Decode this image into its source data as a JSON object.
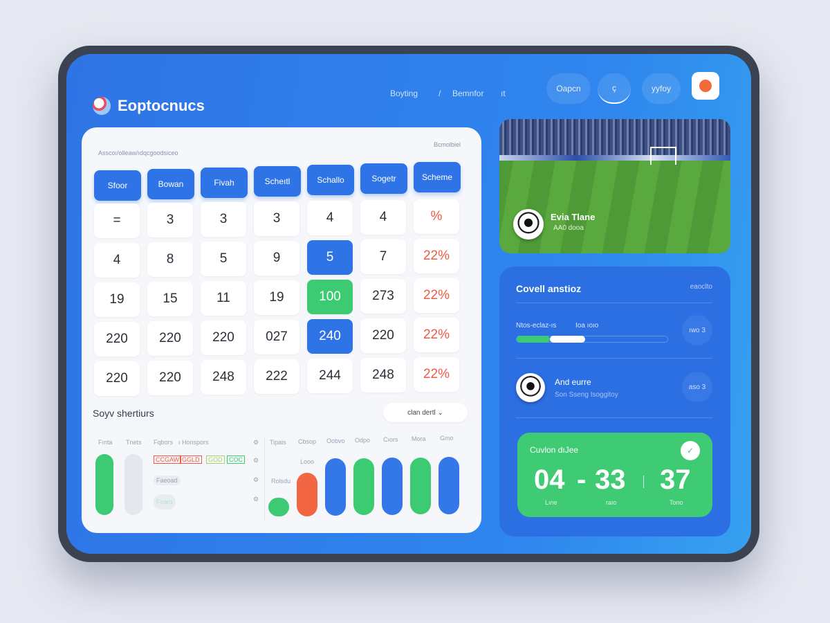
{
  "app": {
    "logo_text": "Eoptocnucs"
  },
  "nav": {
    "items": [
      "Boyting",
      "/",
      "Bemnfor",
      "ıt"
    ]
  },
  "header": {
    "search_label": "Oapcn",
    "icon_button": "ç",
    "profile_label": "yyfoy"
  },
  "card": {
    "caption_left": "Asscoı/olleaw/ıdqcgoodsiceo",
    "caption_right": "Bcmolbiel",
    "tabs": [
      "Sfoor",
      "Bowan",
      "Fivah",
      "Scheıtl",
      "Schallo",
      "Sogetr",
      "Scheme"
    ],
    "grid": [
      [
        "=",
        "3",
        "3",
        "3",
        "4",
        "4",
        "%"
      ],
      [
        "4",
        "8",
        "5",
        "9",
        "5",
        "7",
        "22%"
      ],
      [
        "19",
        "15",
        "11",
        "19",
        "100",
        "273",
        "22%"
      ],
      [
        "220",
        "220",
        "220",
        "027",
        "240",
        "220",
        "22%"
      ],
      [
        "220",
        "220",
        "248",
        "222",
        "244",
        "248",
        "22%"
      ]
    ],
    "highlights": {
      "1-4": "blue",
      "2-4": "green",
      "3-4": "blue"
    }
  },
  "shortcuts": {
    "title": "Soyv shertiurs",
    "dropdown": "clan dertl",
    "left_labels": [
      "Fınta",
      "Tnets",
      "Fqbors",
      "ı Honspors"
    ],
    "chips": [
      "CCGAW",
      "GGLD",
      "GOD",
      "COC"
    ],
    "chip2": "Faeoad",
    "chip3": "Foaro",
    "right_labels": [
      "Tipais",
      "Cbsop",
      "Oobvo",
      "Odpo",
      "Cıors",
      "Mora",
      "Gmo"
    ],
    "mini_labels": [
      "Rolsdu",
      "Looo"
    ],
    "bars": [
      {
        "color": "#3ccb72",
        "value": 30
      },
      {
        "color": "#f26643",
        "value": 70
      },
      {
        "color": "#3477e8",
        "value": 92
      },
      {
        "color": "#3ccb72",
        "value": 92
      },
      {
        "color": "#3477e8",
        "value": 92
      },
      {
        "color": "#3ccb72",
        "value": 92
      },
      {
        "color": "#3477e8",
        "value": 92
      }
    ]
  },
  "photo": {
    "title": "Evia Tlane",
    "subtitle": "AA0 dooa"
  },
  "stats": {
    "title": "Covell anstioz",
    "link": "eaoclto",
    "progress": {
      "label": "Ntos-eclaz-ıs",
      "label2": "Ioa ıoıo",
      "badge": "ıwo 3",
      "green": 22,
      "white": 45
    },
    "team": {
      "name": "And eurre",
      "sub": "Son Sseng Isoggitoy",
      "badge": "aso 3"
    },
    "score": {
      "title": "Cuvlon dıJee",
      "values": [
        "04",
        "33",
        "37"
      ],
      "sep": "-",
      "labels": [
        "Lıne",
        "raıo",
        "Tono"
      ]
    }
  },
  "colors": {
    "primary": "#2f74e6",
    "green": "#3ccb72",
    "red": "#ef5a43"
  }
}
